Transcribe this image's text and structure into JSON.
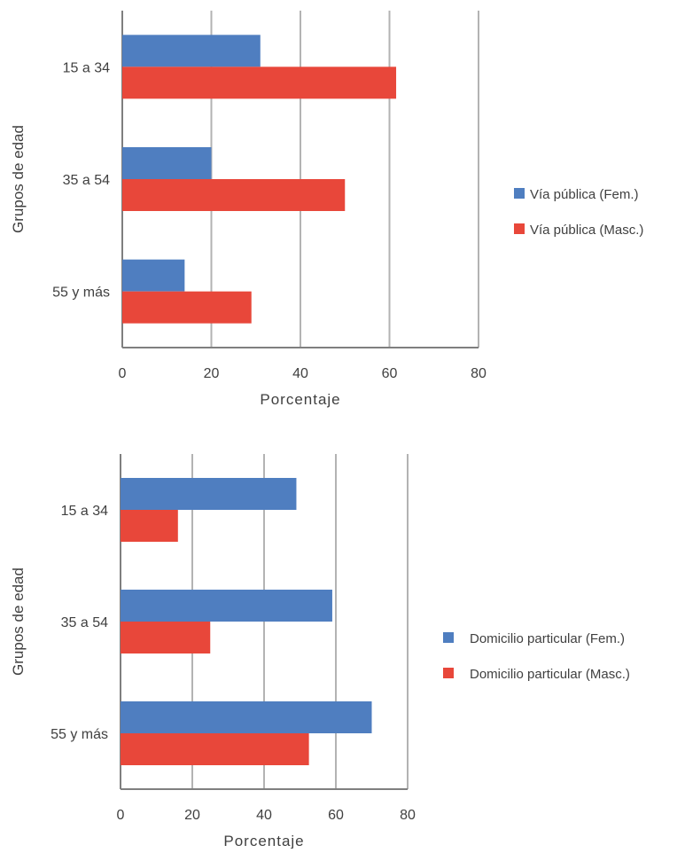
{
  "chart_data": [
    {
      "type": "bar",
      "orientation": "horizontal",
      "categories": [
        "15 a 34",
        "35 a 54",
        "55 y más"
      ],
      "series": [
        {
          "name": "Vía pública (Fem.)",
          "values": [
            31,
            20,
            14
          ],
          "color": "#4f7ec0"
        },
        {
          "name": "Vía pública (Masc.)",
          "values": [
            61.5,
            50,
            29
          ],
          "color": "#e8473a"
        }
      ],
      "xlabel": "Porcentaje",
      "ylabel": "Grupos de edad",
      "xlim": [
        0,
        80
      ],
      "xticks": [
        "0",
        "20",
        "40",
        "60",
        "80"
      ],
      "grid": true,
      "legend_position": "right"
    },
    {
      "type": "bar",
      "orientation": "horizontal",
      "categories": [
        "15 a 34",
        "35 a 54",
        "55 y más"
      ],
      "series": [
        {
          "name": "Domicilio particular (Fem.)",
          "values": [
            49,
            59,
            70
          ],
          "color": "#4f7ec0"
        },
        {
          "name": "Domicilio particular (Masc.)",
          "values": [
            16,
            25,
            52.5
          ],
          "color": "#e8473a"
        }
      ],
      "xlabel": "Porcentaje",
      "ylabel": "Grupos de edad",
      "xlim": [
        0,
        80
      ],
      "xticks": [
        "0",
        "20",
        "40",
        "60",
        "80"
      ],
      "grid": true,
      "legend_position": "right"
    }
  ]
}
